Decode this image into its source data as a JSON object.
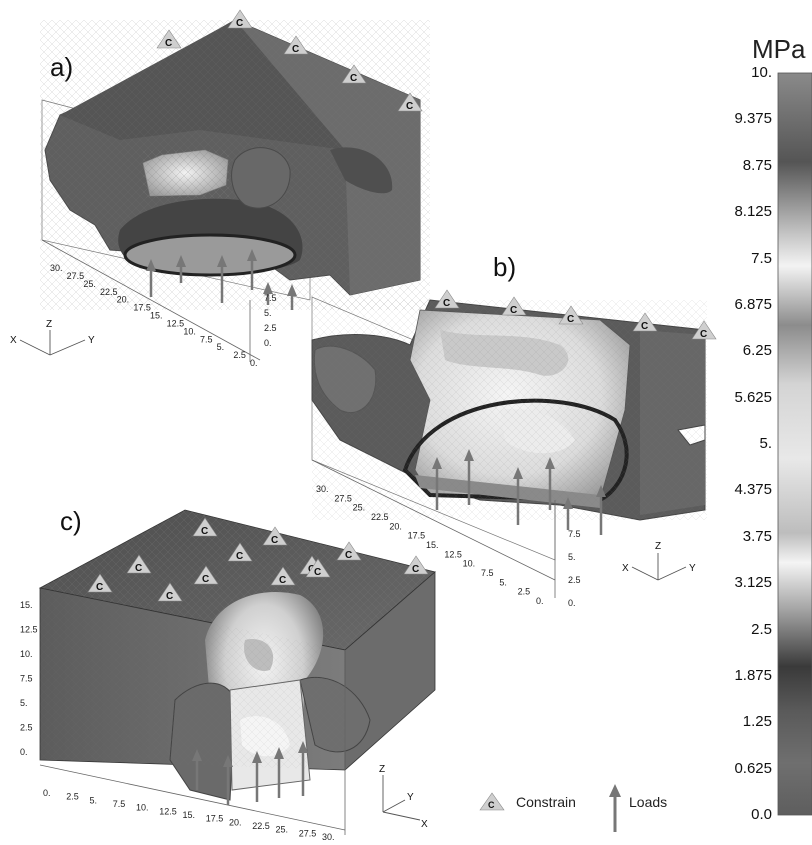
{
  "panels": [
    {
      "label": "a)"
    },
    {
      "label": "b)"
    },
    {
      "label": "c)"
    }
  ],
  "constraint_symbol": "C",
  "colorbar": {
    "unit": "MPa",
    "ticks": [
      "10.",
      "9.375",
      "8.75",
      "8.125",
      "7.5",
      "6.875",
      "6.25",
      "5.625",
      "5.",
      "4.375",
      "3.75",
      "3.125",
      "2.5",
      "1.875",
      "1.25",
      "0.625",
      "0.0"
    ]
  },
  "legend": {
    "constrain_symbol": "C",
    "constrain_label": "Constrain",
    "loads_label": "Loads"
  },
  "axis_letters": {
    "x": "X",
    "y": "Y",
    "z": "Z"
  },
  "axis_ticks": {
    "a_long": [
      "30.",
      "27.5",
      "25.",
      "22.5",
      "20.",
      "17.5",
      "15.",
      "12.5",
      "10.",
      "7.5",
      "5.",
      "2.5",
      "0."
    ],
    "a_vert": [
      "0.",
      "2.5",
      "5.",
      "7.5"
    ],
    "b_long": [
      "30.",
      "27.5",
      "25.",
      "22.5",
      "20.",
      "17.5",
      "15.",
      "12.5",
      "10.",
      "7.5",
      "5.",
      "2.5",
      "0."
    ],
    "b_vert": [
      "0.",
      "2.5",
      "5.",
      "7.5"
    ],
    "c_vert": [
      "15.",
      "12.5",
      "10.",
      "7.5",
      "5.",
      "2.5",
      "0."
    ],
    "c_long": [
      "0.",
      "2.5",
      "5.",
      "7.5",
      "10.",
      "12.5",
      "15.",
      "17.5",
      "20.",
      "22.5",
      "25.",
      "27.5",
      "30."
    ]
  },
  "colors": {
    "mesh_dark": "#5a5a5a",
    "mesh_mid": "#7a7a7a",
    "stress_light": "#e6e6e6",
    "arrow": "#777777",
    "constraint_fill": "#cfcfcf"
  }
}
